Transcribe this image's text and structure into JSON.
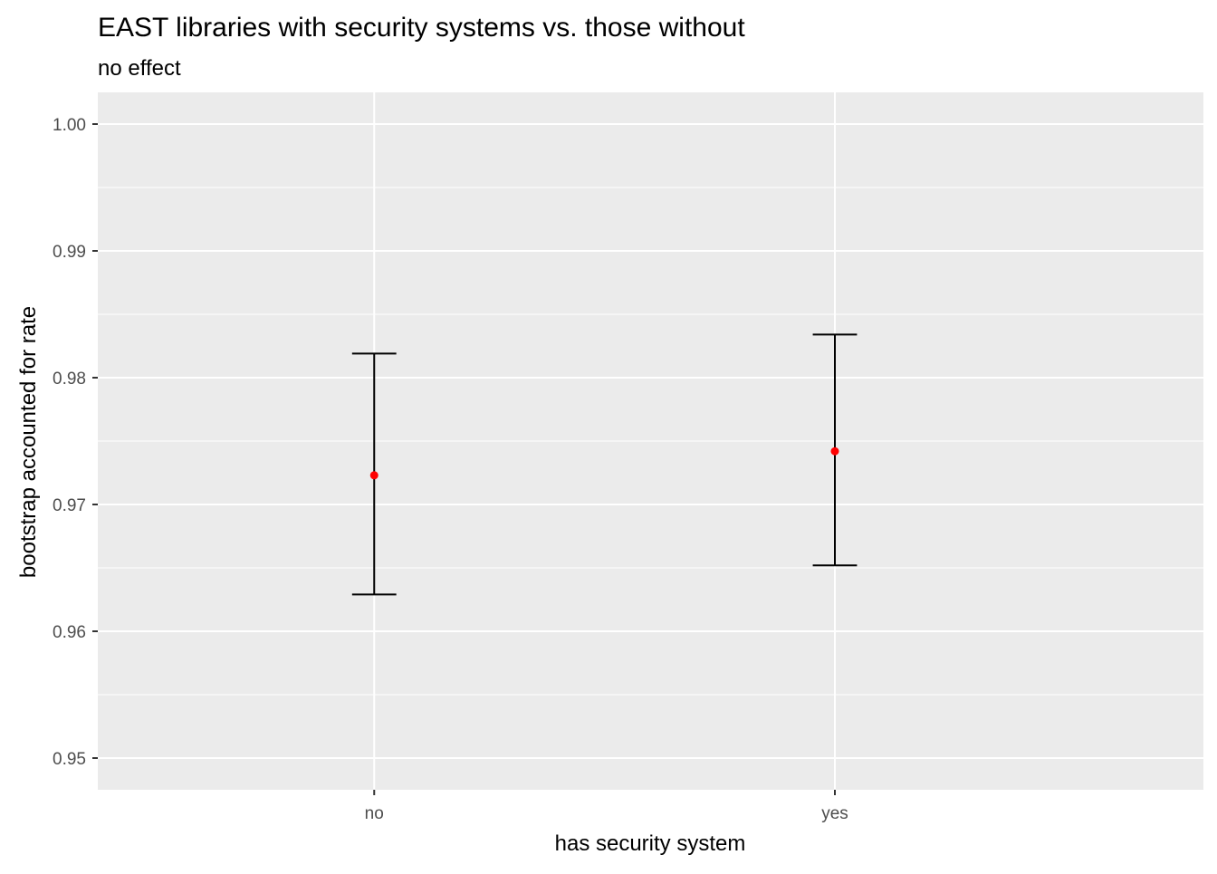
{
  "chart_data": {
    "type": "errorbar",
    "title": "EAST libraries with security systems vs. those without",
    "subtitle": "no effect",
    "xlabel": "has security system",
    "ylabel": "bootstrap accounted for rate",
    "categories": [
      "no",
      "yes"
    ],
    "points": [
      {
        "category": "no",
        "estimate": 0.9723,
        "lower": 0.9629,
        "upper": 0.9819
      },
      {
        "category": "yes",
        "estimate": 0.9742,
        "lower": 0.9652,
        "upper": 0.9834
      }
    ],
    "ylim": [
      0.9475,
      1.0025
    ],
    "yticks": [
      0.95,
      0.96,
      0.97,
      0.98,
      0.99,
      1.0
    ],
    "ytick_labels": [
      "0.95",
      "0.96",
      "0.97",
      "0.98",
      "0.99",
      "1.00"
    ],
    "grid": true,
    "legend": "none",
    "colors": {
      "panel_background": "#ebebeb",
      "grid": "#ffffff",
      "point": "#ff0000",
      "errorbar": "#000000",
      "tick_text": "#4d4d4d",
      "axis_ticks": "#333333"
    }
  }
}
